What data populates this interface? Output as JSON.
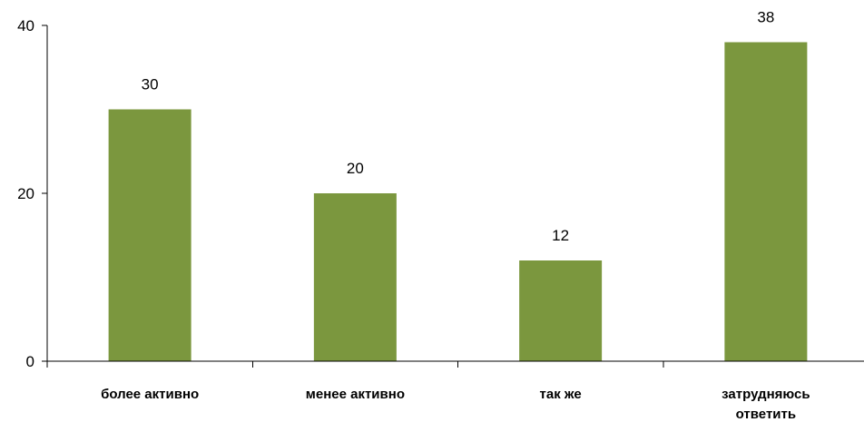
{
  "chart_data": {
    "type": "bar",
    "categories": [
      "более активно",
      "менее активно",
      "так же",
      "затрудняюсь ответить"
    ],
    "values": [
      30,
      20,
      12,
      38
    ],
    "data_labels": [
      "30",
      "20",
      "12",
      "38"
    ],
    "yticks": [
      0,
      20,
      40
    ],
    "ytick_labels": [
      "0",
      "20",
      "40"
    ],
    "ylim": [
      0,
      40
    ],
    "bar_color": "#7b973e",
    "axis_color": "#000000",
    "grid": false,
    "legend": "none"
  }
}
